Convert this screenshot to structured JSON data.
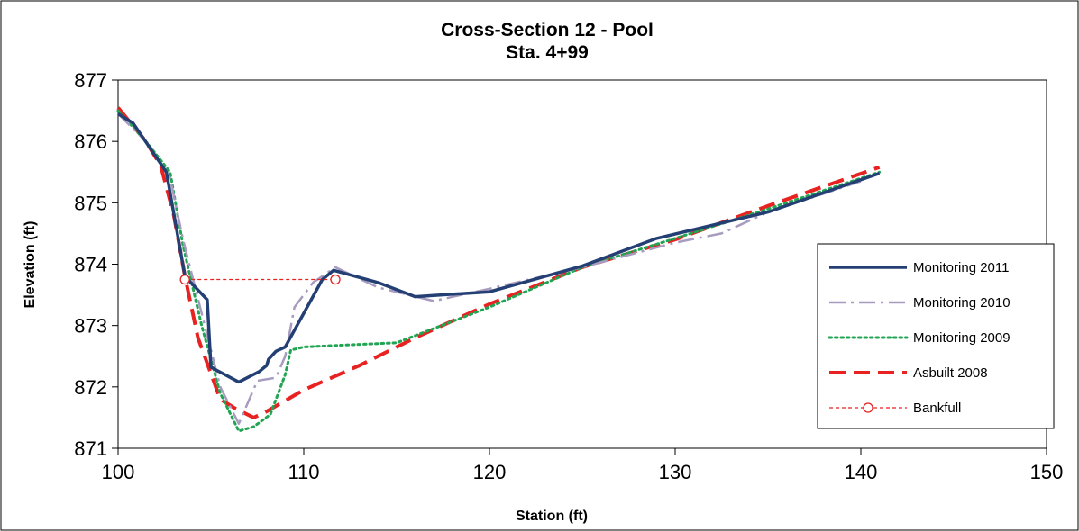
{
  "chart_data": {
    "type": "line",
    "title": "Cross-Section 12 - Pool",
    "subtitle": "Sta. 4+99",
    "xlabel": "Station (ft)",
    "ylabel": "Elevation (ft)",
    "xlim": [
      100,
      150
    ],
    "ylim": [
      871,
      877
    ],
    "xticks": [
      "100",
      "110",
      "120",
      "130",
      "140",
      "150"
    ],
    "yticks": [
      "871",
      "872",
      "873",
      "874",
      "875",
      "876",
      "877"
    ],
    "grid": false,
    "legend_position": "right",
    "series": [
      {
        "name": "Monitoring 2011",
        "color": "#243f73",
        "style": "solid",
        "x": [
          100,
          100.8,
          102.6,
          103.6,
          104.8,
          105.0,
          106.5,
          107.6,
          108.0,
          108.1,
          108.5,
          109.0,
          111.0,
          111.6,
          114.0,
          116.0,
          120.0,
          125.0,
          129.0,
          135.0,
          141.0
        ],
        "y": [
          876.45,
          876.3,
          875.5,
          873.8,
          873.42,
          872.32,
          872.08,
          872.25,
          872.35,
          872.45,
          872.58,
          872.65,
          873.75,
          873.9,
          873.7,
          873.47,
          873.55,
          873.97,
          874.42,
          874.85,
          875.48
        ]
      },
      {
        "name": "Monitoring 2010",
        "color": "#a79bbf",
        "style": "dashdot",
        "x": [
          100,
          101.5,
          102.8,
          103.5,
          104.5,
          105.5,
          106.5,
          107.5,
          108.5,
          109.0,
          109.5,
          110.5,
          111.7,
          114.0,
          117.0,
          120.0,
          125.0,
          130.0,
          132.5,
          135.0,
          140.0
        ],
        "y": [
          876.45,
          876.0,
          875.4,
          874.4,
          873.2,
          872.0,
          871.4,
          872.1,
          872.15,
          872.5,
          873.3,
          873.7,
          873.95,
          873.62,
          873.4,
          873.6,
          873.95,
          874.35,
          874.5,
          874.85,
          875.35
        ]
      },
      {
        "name": "Monitoring 2009",
        "color": "#22a553",
        "style": "dotted",
        "x": [
          100,
          101.5,
          102.8,
          103.5,
          104.5,
          105.5,
          106.5,
          107.3,
          108.2,
          109.0,
          109.3,
          110.0,
          112.0,
          115.0,
          120.0,
          125.0,
          130.0,
          135.0,
          141.0
        ],
        "y": [
          876.5,
          876.0,
          875.5,
          874.3,
          873.0,
          871.9,
          871.28,
          871.35,
          871.55,
          872.2,
          872.6,
          872.65,
          872.68,
          872.72,
          873.3,
          873.95,
          874.42,
          874.9,
          875.5
        ]
      },
      {
        "name": "Asbuilt 2008",
        "color": "#e82121",
        "style": "dashed",
        "x": [
          100,
          101.5,
          102.3,
          103.0,
          103.6,
          104.3,
          105.5,
          106.3,
          107.3,
          108.0,
          110.0,
          113.0,
          116.0,
          120.0,
          125.0,
          130.0,
          135.0,
          141.0
        ],
        "y": [
          876.55,
          876.0,
          875.6,
          874.8,
          873.8,
          872.8,
          871.8,
          871.65,
          871.5,
          871.6,
          871.95,
          872.35,
          872.8,
          873.35,
          873.95,
          874.4,
          874.95,
          875.58
        ]
      },
      {
        "name": "Bankfull",
        "color": "#e82121",
        "style": "dashed-marker",
        "x": [
          103.6,
          111.7
        ],
        "y": [
          873.75,
          873.75
        ]
      }
    ]
  }
}
